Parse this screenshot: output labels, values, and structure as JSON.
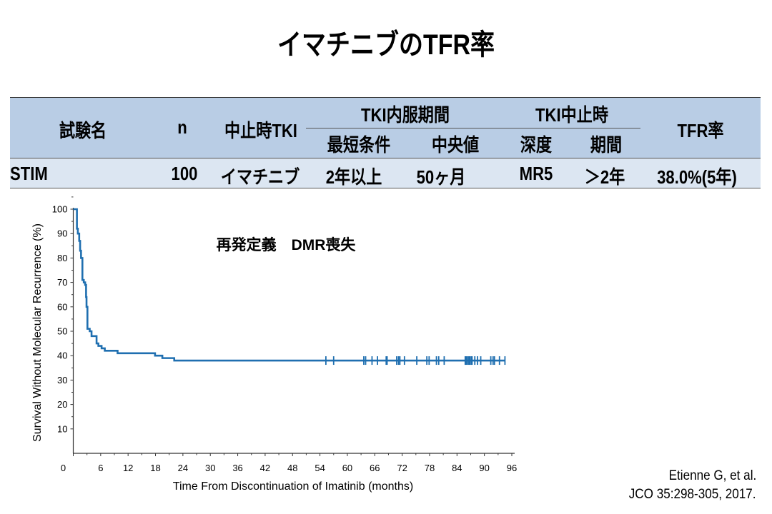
{
  "title": "イマチニブのTFR率",
  "table": {
    "headers": {
      "trial": "試験名",
      "n": "n",
      "tki": "中止時TKI",
      "duration_group": "TKI内服期間",
      "min_condition": "最短条件",
      "median": "中央値",
      "at_stop_group": "TKI中止時",
      "depth": "深度",
      "period": "期間",
      "tfr": "TFR率"
    },
    "rows": [
      {
        "trial": "STIM",
        "n": "100",
        "tki": "イマチニブ",
        "min_condition": "2年以上",
        "median": "50ヶ月",
        "depth": "MR5",
        "period": "＞2年",
        "tfr": "38.0%(5年)"
      }
    ]
  },
  "chart_data": {
    "type": "line",
    "subtype": "kaplan-meier-step",
    "annotation": "再発定義　DMR喪失",
    "xlabel": "Time From Discontinuation of Imatinib (months)",
    "ylabel": "Survival Without Molecular Recurrence (%)",
    "xlim": [
      0,
      96
    ],
    "ylim": [
      0,
      100
    ],
    "xticks": [
      "0",
      "6",
      "12",
      "18",
      "24",
      "30",
      "36",
      "42",
      "48",
      "54",
      "60",
      "66",
      "72",
      "78",
      "84",
      "90",
      "96"
    ],
    "yticks": [
      "10",
      "20",
      "30",
      "40",
      "50",
      "60",
      "70",
      "80",
      "90",
      "100"
    ],
    "color": "#1f6fb0",
    "steps": [
      [
        0,
        100
      ],
      [
        0.8,
        92
      ],
      [
        1.0,
        90
      ],
      [
        1.3,
        87
      ],
      [
        1.5,
        83
      ],
      [
        1.7,
        80
      ],
      [
        2.0,
        71
      ],
      [
        2.3,
        70
      ],
      [
        2.6,
        69
      ],
      [
        2.8,
        64
      ],
      [
        2.9,
        60
      ],
      [
        3.1,
        51
      ],
      [
        3.6,
        50
      ],
      [
        4.0,
        48
      ],
      [
        5.1,
        45
      ],
      [
        5.5,
        44
      ],
      [
        6.2,
        43
      ],
      [
        6.9,
        42
      ],
      [
        9.7,
        41
      ],
      [
        17.9,
        40
      ],
      [
        19.5,
        39
      ],
      [
        22.1,
        38
      ],
      [
        94.5,
        38
      ]
    ],
    "censored": [
      55.3,
      57.0,
      63.6,
      64.0,
      65.4,
      66.6,
      68.5,
      68.7,
      70.8,
      71.2,
      71.5,
      72.5,
      75.2,
      77.4,
      77.9,
      79.5,
      80.0,
      81.2,
      85.8,
      86.0,
      86.3,
      86.6,
      86.8,
      87.1,
      87.3,
      87.9,
      88.5,
      89.2,
      91.4,
      91.9,
      92.2,
      93.3,
      94.5
    ]
  },
  "citation": {
    "line1": "Etienne G, et al.",
    "line2": "JCO 35:298-305, 2017."
  }
}
